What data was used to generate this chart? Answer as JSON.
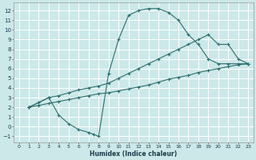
{
  "bg_color": "#cce8e8",
  "grid_color": "#ffffff",
  "line_color": "#2d6e6e",
  "xlabel": "Humidex (Indice chaleur)",
  "xlim": [
    -0.5,
    23.5
  ],
  "ylim": [
    -1.6,
    12.8
  ],
  "xticks": [
    0,
    1,
    2,
    3,
    4,
    5,
    6,
    7,
    8,
    9,
    10,
    11,
    12,
    13,
    14,
    15,
    16,
    17,
    18,
    19,
    20,
    21,
    22,
    23
  ],
  "yticks": [
    -1,
    0,
    1,
    2,
    3,
    4,
    5,
    6,
    7,
    8,
    9,
    10,
    11,
    12
  ],
  "curve1_x": [
    1,
    2,
    3,
    4,
    5,
    6,
    7,
    7.5,
    8,
    9,
    10,
    11,
    12,
    13,
    14,
    15,
    16,
    17,
    18,
    19,
    20,
    21,
    22,
    23
  ],
  "curve1_y": [
    2,
    2.5,
    3,
    1.2,
    0.3,
    -0.3,
    -0.6,
    -0.8,
    -1,
    5.5,
    9,
    11.5,
    12,
    12.2,
    12.2,
    11.8,
    11,
    9.5,
    8.5,
    7,
    6.5,
    6.5,
    6.5,
    6.5
  ],
  "curve2_x": [
    1,
    2,
    3,
    4,
    5,
    6,
    7,
    8,
    9,
    10,
    11,
    12,
    13,
    14,
    15,
    16,
    17,
    18,
    19,
    20,
    21,
    22,
    23
  ],
  "curve2_y": [
    2,
    2.5,
    3,
    3.2,
    3.5,
    3.8,
    4.0,
    4.2,
    4.5,
    5.0,
    5.5,
    6.0,
    6.5,
    7.0,
    7.5,
    8.0,
    8.5,
    9.0,
    9.5,
    8.5,
    8.5,
    7.0,
    6.5
  ],
  "curve3_x": [
    1,
    2,
    3,
    4,
    5,
    6,
    7,
    8,
    9,
    10,
    11,
    12,
    13,
    14,
    15,
    16,
    17,
    18,
    19,
    20,
    21,
    22,
    23
  ],
  "curve3_y": [
    2,
    2.2,
    2.4,
    2.6,
    2.8,
    3.0,
    3.2,
    3.4,
    3.5,
    3.7,
    3.9,
    4.1,
    4.3,
    4.6,
    4.9,
    5.1,
    5.3,
    5.6,
    5.8,
    6.0,
    6.2,
    6.4,
    6.5
  ]
}
